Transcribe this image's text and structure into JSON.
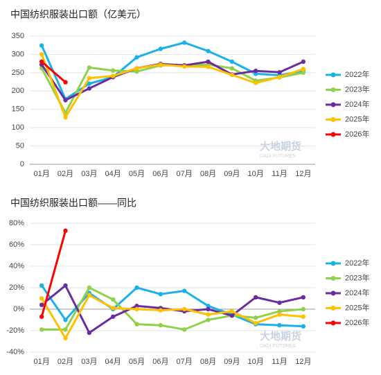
{
  "chart_data": [
    {
      "type": "line",
      "title": "中国纺织服装出口额（亿美元）",
      "categories": [
        "01月",
        "02月",
        "03月",
        "04月",
        "05月",
        "06月",
        "07月",
        "08月",
        "09月",
        "10月",
        "11月",
        "12月"
      ],
      "ylim": [
        0,
        350
      ],
      "yticks": [
        0,
        50,
        100,
        150,
        200,
        250,
        300,
        350
      ],
      "grid": true,
      "legend": "right",
      "series": [
        {
          "name": "2022年",
          "color": "#1ab0e8",
          "values": [
            324,
            178,
            220,
            238,
            292,
            315,
            332,
            309,
            280,
            247,
            243,
            255
          ]
        },
        {
          "name": "2023年",
          "color": "#8fd14f",
          "values": [
            262,
            140,
            264,
            256,
            253,
            270,
            270,
            272,
            262,
            228,
            237,
            250
          ]
        },
        {
          "name": "2024年",
          "color": "#6a2c9e",
          "values": [
            272,
            175,
            207,
            238,
            262,
            274,
            270,
            280,
            245,
            255,
            251,
            280
          ]
        },
        {
          "name": "2025年",
          "color": "#ffc000",
          "values": [
            300,
            128,
            235,
            241,
            262,
            272,
            267,
            266,
            244,
            222,
            238,
            260
          ]
        },
        {
          "name": "2026年",
          "color": "#ff0000",
          "values": [
            280,
            224,
            null,
            null,
            null,
            null,
            null,
            null,
            null,
            null,
            null,
            null
          ]
        }
      ]
    },
    {
      "type": "line",
      "title": "中国纺织服装出口额——同比",
      "categories": [
        "01月",
        "02月",
        "03月",
        "04月",
        "05月",
        "06月",
        "07月",
        "08月",
        "09月",
        "10月",
        "11月",
        "12月"
      ],
      "ylim": [
        -40,
        80
      ],
      "yticks": [
        {
          "value": -40,
          "label": "-40%"
        },
        {
          "value": -20,
          "label": "-20%"
        },
        {
          "value": 0,
          "label": "0%"
        },
        {
          "value": 20,
          "label": "20%"
        },
        {
          "value": 40,
          "label": "40%"
        },
        {
          "value": 60,
          "label": "60%"
        },
        {
          "value": 80,
          "label": "80%"
        }
      ],
      "grid": true,
      "legend": "right",
      "series": [
        {
          "name": "2022年",
          "color": "#1ab0e8",
          "values": [
            22,
            -10,
            15,
            0,
            20,
            14,
            17,
            3,
            -5,
            -14,
            -15,
            -16
          ]
        },
        {
          "name": "2023年",
          "color": "#8fd14f",
          "values": [
            -19,
            -19,
            20,
            9,
            -14,
            -15,
            -19,
            -10,
            -6,
            -8,
            -2,
            0
          ]
        },
        {
          "name": "2024年",
          "color": "#6a2c9e",
          "values": [
            4,
            22,
            -22,
            -7,
            3,
            1,
            -2,
            0,
            -6,
            11,
            6,
            11
          ]
        },
        {
          "name": "2025年",
          "color": "#ffc000",
          "values": [
            10,
            -27,
            13,
            1,
            0,
            -1,
            0,
            -5,
            -2,
            -13,
            -5,
            -7
          ]
        },
        {
          "name": "2026年",
          "color": "#ff0000",
          "values": [
            -7,
            73,
            null,
            null,
            null,
            null,
            null,
            null,
            null,
            null,
            null,
            null
          ]
        }
      ]
    }
  ],
  "watermark": {
    "name": "大地期货",
    "sub": "DADI FUTURES"
  }
}
